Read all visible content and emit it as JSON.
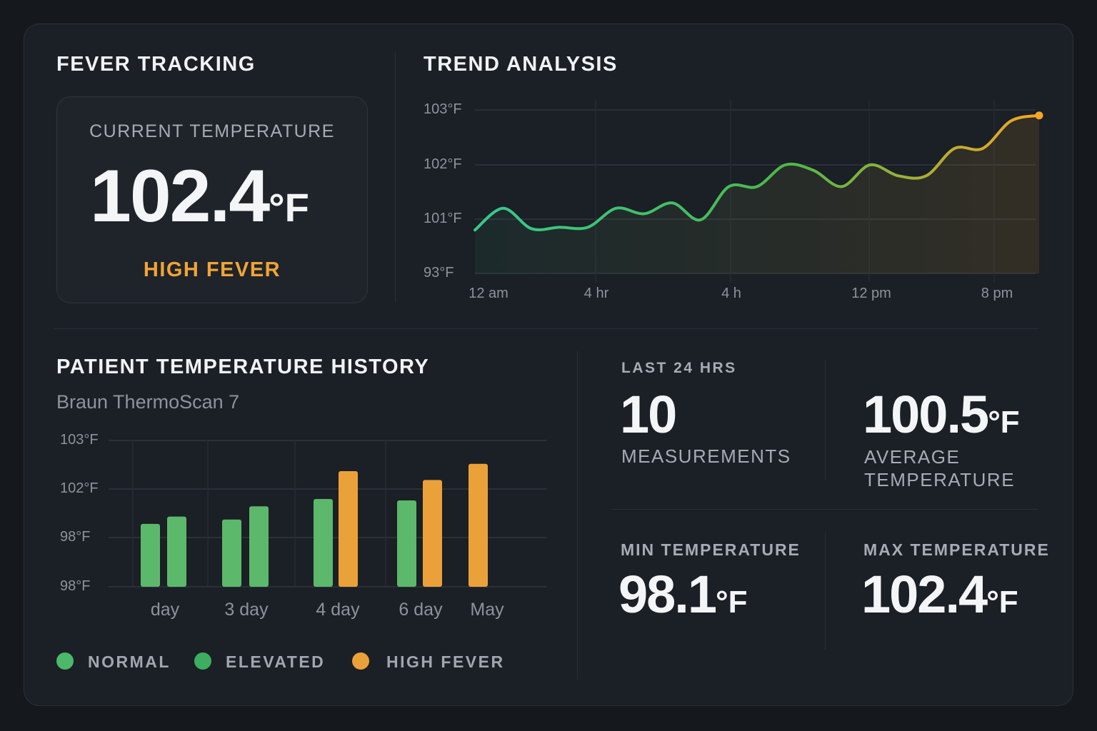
{
  "fever_tracking": {
    "title": "FEVER TRACKING",
    "current_label": "CURRENT TEMPERATURE",
    "current_value": "102.4",
    "unit": "°F",
    "status": "HIGH FEVER",
    "status_color": "#f0a534"
  },
  "trend": {
    "title": "TREND ANALYSIS",
    "chart_data": {
      "type": "line",
      "y_ticks": [
        "103°F",
        "102°F",
        "101°F",
        "93°F"
      ],
      "y_tick_values": [
        103,
        102,
        101,
        93
      ],
      "x_ticks": [
        "12 am",
        "4 hr",
        "4 h",
        "12 pm",
        "8 pm"
      ],
      "values": [
        99.4,
        101.2,
        99.6,
        99.8,
        99.8,
        101.2,
        101.1,
        101.3,
        100.9,
        101.6,
        101.6,
        102.0,
        101.9,
        101.6,
        102.0,
        101.8,
        101.8,
        102.3,
        102.3,
        102.8,
        102.9
      ],
      "color_start": "#36c98f",
      "color_end": "#f5a623",
      "grid": true
    }
  },
  "history": {
    "title": "PATIENT TEMPERATURE HISTORY",
    "device": "Braun ThermoScan 7",
    "chart_data": {
      "type": "bar",
      "y_ticks": [
        "103°F",
        "102°F",
        "98°F",
        "98°F"
      ],
      "categories": [
        "day",
        "3 day",
        "4 day",
        "6 day",
        "May"
      ],
      "bars": [
        [
          {
            "level": 0.43,
            "status": "normal"
          },
          {
            "level": 0.48,
            "status": "elevated"
          }
        ],
        [
          {
            "level": 0.46,
            "status": "normal"
          },
          {
            "level": 0.55,
            "status": "elevated"
          }
        ],
        [
          {
            "level": 0.6,
            "status": "normal"
          },
          {
            "level": 0.79,
            "status": "high"
          }
        ],
        [
          {
            "level": 0.59,
            "status": "normal"
          },
          {
            "level": 0.73,
            "status": "high"
          }
        ],
        [
          {
            "level": 0.84,
            "status": "high"
          }
        ]
      ],
      "grid": true
    },
    "legend": [
      {
        "label": "NORMAL",
        "color": "#4cb869"
      },
      {
        "label": "ELEVATED",
        "color": "#3dad5f"
      },
      {
        "label": "HIGH FEVER",
        "color": "#eba13a"
      }
    ]
  },
  "stats": {
    "last24_label": "LAST 24 HRS",
    "measurements_value": "10",
    "measurements_label": "MEASUREMENTS",
    "average_value": "100.5",
    "average_label_1": "AVERAGE",
    "average_label_2": "TEMPERATURE",
    "min_label": "MIN TEMPERATURE",
    "min_value": "98.1",
    "max_label": "MAX TEMPERATURE",
    "max_value": "102.4",
    "unit": "°F"
  }
}
